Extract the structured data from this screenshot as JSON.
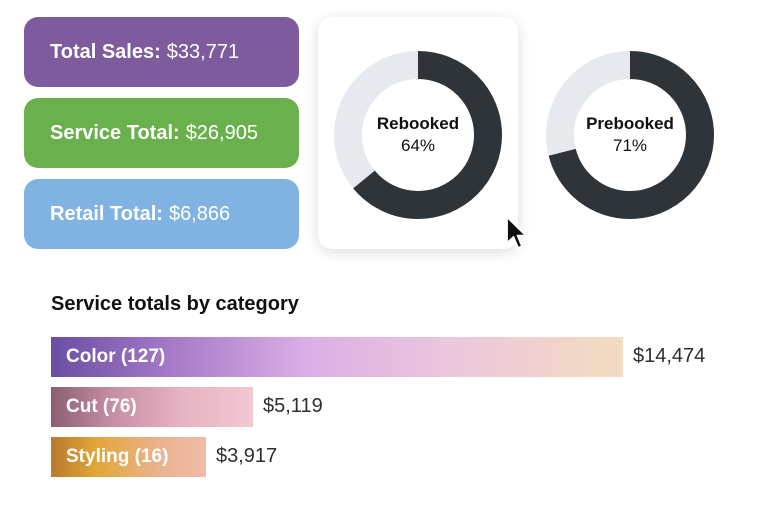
{
  "stats": {
    "total_sales": {
      "label": "Total Sales:",
      "value": "$33,771",
      "color": "#7d5b9d"
    },
    "service_total": {
      "label": "Service Total:",
      "value": "$26,905",
      "color": "#6ab04c"
    },
    "retail_total": {
      "label": "Retail Total:",
      "value": "$6,866",
      "color": "#80b3e1"
    }
  },
  "donuts": {
    "rebooked": {
      "label": "Rebooked",
      "percent_text": "64%",
      "fraction": 0.64
    },
    "prebooked": {
      "label": "Prebooked",
      "percent_text": "71%",
      "fraction": 0.71
    },
    "fill_color": "#2f3438",
    "track_color": "#e6e9ee"
  },
  "section": {
    "title": "Service totals by category"
  },
  "chart_data": {
    "type": "bar",
    "orientation": "horizontal",
    "categories": [
      "Color (127)",
      "Cut (76)",
      "Styling (16)"
    ],
    "values": [
      14474,
      5119,
      3917
    ],
    "value_labels": [
      "$14,474",
      "$5,119",
      "$3,917"
    ],
    "max": 14474
  },
  "icons": {
    "cursor": "mouse-pointer-icon"
  }
}
